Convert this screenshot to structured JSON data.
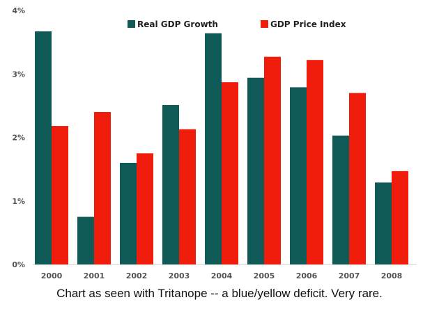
{
  "chart_data": {
    "type": "bar",
    "categories": [
      "2000",
      "2001",
      "2002",
      "2003",
      "2004",
      "2005",
      "2006",
      "2007",
      "2008"
    ],
    "series": [
      {
        "name": "Real GDP Growth",
        "color": "#0f5a57",
        "values": [
          3.67,
          0.75,
          1.6,
          2.51,
          3.64,
          2.94,
          2.79,
          2.03,
          1.29
        ]
      },
      {
        "name": "GDP Price Index",
        "color": "#f01c0c",
        "values": [
          2.18,
          2.4,
          1.75,
          2.13,
          2.87,
          3.27,
          3.22,
          2.7,
          1.47
        ]
      }
    ],
    "yticks": [
      "0%",
      "1%",
      "2%",
      "3%",
      "4%"
    ],
    "ylim": [
      0,
      4
    ],
    "grid": false,
    "legend": "top-center"
  },
  "caption": "Chart as seen with Tritanope -- a blue/yellow deficit. Very rare."
}
